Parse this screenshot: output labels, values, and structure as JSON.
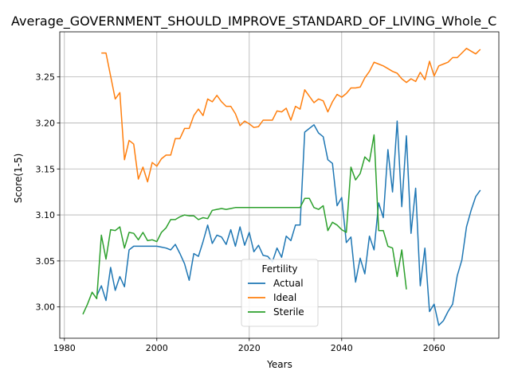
{
  "chart_data": {
    "type": "line",
    "title": "Average_GOVERNMENT_SHOULD_IMPROVE_STANDARD_OF_LIVING_Whole_C",
    "xlabel": "Years",
    "ylabel": "Score(1-5)",
    "xlim": [
      1979,
      2074
    ],
    "ylim": [
      2.966,
      3.299
    ],
    "xticks": [
      1980,
      2000,
      2020,
      2040,
      2060
    ],
    "yticks": [
      3.0,
      3.05,
      3.1,
      3.15,
      3.2,
      3.25
    ],
    "xtick_labels": [
      "1980",
      "2000",
      "2020",
      "2040",
      "2060"
    ],
    "ytick_labels": [
      "3.00",
      "3.05",
      "3.10",
      "3.15",
      "3.20",
      "3.25"
    ],
    "grid": true,
    "legend": {
      "title": "Fertility",
      "placement": "lower-center"
    },
    "series": [
      {
        "name": "Actual",
        "color": "#1f77b4",
        "points": [
          [
            1987,
            3.012
          ],
          [
            1988,
            3.023
          ],
          [
            1989,
            3.007
          ],
          [
            1990,
            3.043
          ],
          [
            1991,
            3.018
          ],
          [
            1992,
            3.033
          ],
          [
            1993,
            3.022
          ],
          [
            1994,
            3.062
          ],
          [
            1995,
            3.066
          ],
          [
            1996,
            3.066
          ],
          [
            1997,
            3.066
          ],
          [
            1998,
            3.066
          ],
          [
            1999,
            3.066
          ],
          [
            2000,
            3.066
          ],
          [
            2001,
            3.065
          ],
          [
            2002,
            3.064
          ],
          [
            2003,
            3.062
          ],
          [
            2004,
            3.068
          ],
          [
            2005,
            3.058
          ],
          [
            2006,
            3.047
          ],
          [
            2007,
            3.029
          ],
          [
            2008,
            3.058
          ],
          [
            2009,
            3.055
          ],
          [
            2010,
            3.071
          ],
          [
            2011,
            3.089
          ],
          [
            2012,
            3.069
          ],
          [
            2013,
            3.078
          ],
          [
            2014,
            3.076
          ],
          [
            2015,
            3.068
          ],
          [
            2016,
            3.084
          ],
          [
            2017,
            3.066
          ],
          [
            2018,
            3.087
          ],
          [
            2019,
            3.067
          ],
          [
            2020,
            3.081
          ],
          [
            2021,
            3.06
          ],
          [
            2022,
            3.067
          ],
          [
            2023,
            3.056
          ],
          [
            2024,
            3.055
          ],
          [
            2025,
            3.049
          ],
          [
            2026,
            3.064
          ],
          [
            2027,
            3.054
          ],
          [
            2028,
            3.077
          ],
          [
            2029,
            3.072
          ],
          [
            2030,
            3.089
          ],
          [
            2031,
            3.089
          ],
          [
            2032,
            3.19
          ],
          [
            2033,
            3.194
          ],
          [
            2034,
            3.198
          ],
          [
            2035,
            3.189
          ],
          [
            2036,
            3.185
          ],
          [
            2037,
            3.16
          ],
          [
            2038,
            3.156
          ],
          [
            2039,
            3.11
          ],
          [
            2040,
            3.119
          ],
          [
            2041,
            3.07
          ],
          [
            2042,
            3.076
          ],
          [
            2043,
            3.027
          ],
          [
            2044,
            3.053
          ],
          [
            2045,
            3.036
          ],
          [
            2046,
            3.077
          ],
          [
            2047,
            3.062
          ],
          [
            2048,
            3.113
          ],
          [
            2049,
            3.097
          ],
          [
            2050,
            3.171
          ],
          [
            2051,
            3.125
          ],
          [
            2052,
            3.202
          ],
          [
            2053,
            3.109
          ],
          [
            2054,
            3.186
          ],
          [
            2055,
            3.08
          ],
          [
            2056,
            3.129
          ],
          [
            2057,
            3.023
          ],
          [
            2058,
            3.064
          ],
          [
            2059,
            2.995
          ],
          [
            2060,
            3.003
          ],
          [
            2061,
            2.98
          ],
          [
            2062,
            2.985
          ],
          [
            2063,
            2.995
          ],
          [
            2064,
            3.003
          ],
          [
            2065,
            3.034
          ],
          [
            2066,
            3.051
          ],
          [
            2067,
            3.087
          ],
          [
            2068,
            3.105
          ],
          [
            2069,
            3.12
          ],
          [
            2070,
            3.127
          ]
        ]
      },
      {
        "name": "Ideal",
        "color": "#ff7f0e",
        "points": [
          [
            1988,
            3.276
          ],
          [
            1989,
            3.276
          ],
          [
            1990,
            3.251
          ],
          [
            1991,
            3.226
          ],
          [
            1992,
            3.233
          ],
          [
            1993,
            3.16
          ],
          [
            1994,
            3.181
          ],
          [
            1995,
            3.177
          ],
          [
            1996,
            3.139
          ],
          [
            1997,
            3.152
          ],
          [
            1998,
            3.136
          ],
          [
            1999,
            3.157
          ],
          [
            2000,
            3.153
          ],
          [
            2001,
            3.161
          ],
          [
            2002,
            3.165
          ],
          [
            2003,
            3.165
          ],
          [
            2004,
            3.183
          ],
          [
            2005,
            3.183
          ],
          [
            2006,
            3.194
          ],
          [
            2007,
            3.194
          ],
          [
            2008,
            3.208
          ],
          [
            2009,
            3.215
          ],
          [
            2010,
            3.208
          ],
          [
            2011,
            3.226
          ],
          [
            2012,
            3.223
          ],
          [
            2013,
            3.23
          ],
          [
            2014,
            3.223
          ],
          [
            2015,
            3.218
          ],
          [
            2016,
            3.218
          ],
          [
            2017,
            3.21
          ],
          [
            2018,
            3.197
          ],
          [
            2019,
            3.202
          ],
          [
            2020,
            3.199
          ],
          [
            2021,
            3.195
          ],
          [
            2022,
            3.196
          ],
          [
            2023,
            3.203
          ],
          [
            2024,
            3.203
          ],
          [
            2025,
            3.203
          ],
          [
            2026,
            3.213
          ],
          [
            2027,
            3.212
          ],
          [
            2028,
            3.216
          ],
          [
            2029,
            3.203
          ],
          [
            2030,
            3.218
          ],
          [
            2031,
            3.215
          ],
          [
            2032,
            3.236
          ],
          [
            2033,
            3.229
          ],
          [
            2034,
            3.222
          ],
          [
            2035,
            3.226
          ],
          [
            2036,
            3.224
          ],
          [
            2037,
            3.212
          ],
          [
            2038,
            3.223
          ],
          [
            2039,
            3.231
          ],
          [
            2040,
            3.228
          ],
          [
            2041,
            3.232
          ],
          [
            2042,
            3.238
          ],
          [
            2043,
            3.238
          ],
          [
            2044,
            3.239
          ],
          [
            2045,
            3.249
          ],
          [
            2046,
            3.256
          ],
          [
            2047,
            3.266
          ],
          [
            2048,
            3.264
          ],
          [
            2049,
            3.262
          ],
          [
            2050,
            3.259
          ],
          [
            2051,
            3.256
          ],
          [
            2052,
            3.254
          ],
          [
            2053,
            3.248
          ],
          [
            2054,
            3.244
          ],
          [
            2055,
            3.248
          ],
          [
            2056,
            3.245
          ],
          [
            2057,
            3.255
          ],
          [
            2058,
            3.247
          ],
          [
            2059,
            3.267
          ],
          [
            2060,
            3.251
          ],
          [
            2061,
            3.262
          ],
          [
            2062,
            3.264
          ],
          [
            2063,
            3.266
          ],
          [
            2064,
            3.271
          ],
          [
            2065,
            3.271
          ],
          [
            2066,
            3.276
          ],
          [
            2067,
            3.281
          ],
          [
            2068,
            3.278
          ],
          [
            2069,
            3.275
          ],
          [
            2070,
            3.28
          ]
        ]
      },
      {
        "name": "Sterile",
        "color": "#2ca02c",
        "points": [
          [
            1984,
            2.992
          ],
          [
            1985,
            3.003
          ],
          [
            1986,
            3.016
          ],
          [
            1987,
            3.009
          ],
          [
            1988,
            3.078
          ],
          [
            1989,
            3.052
          ],
          [
            1990,
            3.084
          ],
          [
            1991,
            3.083
          ],
          [
            1992,
            3.087
          ],
          [
            1993,
            3.064
          ],
          [
            1994,
            3.081
          ],
          [
            1995,
            3.08
          ],
          [
            1996,
            3.073
          ],
          [
            1997,
            3.081
          ],
          [
            1998,
            3.072
          ],
          [
            1999,
            3.073
          ],
          [
            2000,
            3.071
          ],
          [
            2001,
            3.081
          ],
          [
            2002,
            3.086
          ],
          [
            2003,
            3.095
          ],
          [
            2004,
            3.095
          ],
          [
            2005,
            3.098
          ],
          [
            2006,
            3.1
          ],
          [
            2007,
            3.099
          ],
          [
            2008,
            3.099
          ],
          [
            2009,
            3.095
          ],
          [
            2010,
            3.097
          ],
          [
            2011,
            3.096
          ],
          [
            2012,
            3.105
          ],
          [
            2013,
            3.106
          ],
          [
            2014,
            3.107
          ],
          [
            2015,
            3.106
          ],
          [
            2016,
            3.107
          ],
          [
            2017,
            3.108
          ],
          [
            2018,
            3.108
          ],
          [
            2019,
            3.108
          ],
          [
            2020,
            3.108
          ],
          [
            2021,
            3.108
          ],
          [
            2022,
            3.108
          ],
          [
            2023,
            3.108
          ],
          [
            2024,
            3.108
          ],
          [
            2025,
            3.108
          ],
          [
            2026,
            3.108
          ],
          [
            2027,
            3.108
          ],
          [
            2028,
            3.108
          ],
          [
            2029,
            3.108
          ],
          [
            2030,
            3.108
          ],
          [
            2031,
            3.108
          ],
          [
            2032,
            3.118
          ],
          [
            2033,
            3.118
          ],
          [
            2034,
            3.108
          ],
          [
            2035,
            3.106
          ],
          [
            2036,
            3.11
          ],
          [
            2037,
            3.083
          ],
          [
            2038,
            3.092
          ],
          [
            2039,
            3.089
          ],
          [
            2040,
            3.084
          ],
          [
            2041,
            3.081
          ],
          [
            2042,
            3.152
          ],
          [
            2043,
            3.138
          ],
          [
            2044,
            3.145
          ],
          [
            2045,
            3.163
          ],
          [
            2046,
            3.158
          ],
          [
            2047,
            3.187
          ],
          [
            2048,
            3.083
          ],
          [
            2049,
            3.083
          ],
          [
            2050,
            3.066
          ],
          [
            2051,
            3.064
          ],
          [
            2052,
            3.033
          ],
          [
            2053,
            3.062
          ],
          [
            2054,
            3.019
          ]
        ]
      }
    ]
  }
}
